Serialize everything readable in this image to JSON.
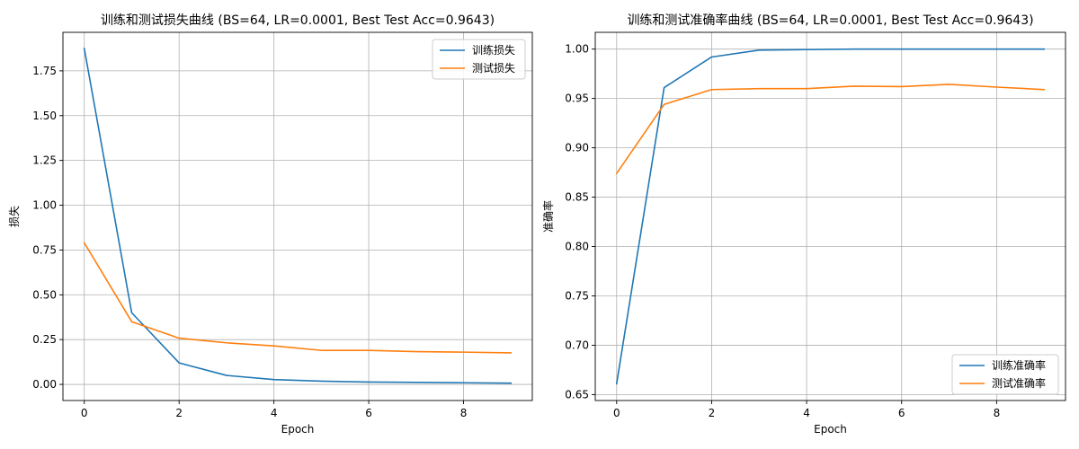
{
  "chart_data": [
    {
      "type": "line",
      "title": "训练和测试损失曲线 (BS=64, LR=0.0001, Best Test Acc=0.9643)",
      "xlabel": "Epoch",
      "ylabel": "损失",
      "xlim": [
        -0.45,
        9.45
      ],
      "ylim": [
        -0.09,
        1.965
      ],
      "xticks": [
        0,
        2,
        4,
        6,
        8
      ],
      "yticks": [
        0.0,
        0.25,
        0.5,
        0.75,
        1.0,
        1.25,
        1.5,
        1.75
      ],
      "ytick_decimals": 2,
      "grid": true,
      "legend_position": "upper right",
      "x": [
        0,
        1,
        2,
        3,
        4,
        5,
        6,
        7,
        8,
        9
      ],
      "series": [
        {
          "name": "训练损失",
          "color": "#1f77b4",
          "values": [
            1.875,
            0.4,
            0.12,
            0.05,
            0.027,
            0.018,
            0.013,
            0.011,
            0.009,
            0.007
          ]
        },
        {
          "name": "测试损失",
          "color": "#ff7f0e",
          "values": [
            0.79,
            0.35,
            0.258,
            0.232,
            0.215,
            0.19,
            0.19,
            0.183,
            0.18,
            0.176
          ]
        }
      ]
    },
    {
      "type": "line",
      "title": "训练和测试准确率曲线 (BS=64, LR=0.0001, Best Test Acc=0.9643)",
      "xlabel": "Epoch",
      "ylabel": "准确率",
      "xlim": [
        -0.45,
        9.45
      ],
      "ylim": [
        0.644,
        1.017
      ],
      "xticks": [
        0,
        2,
        4,
        6,
        8
      ],
      "yticks": [
        0.65,
        0.7,
        0.75,
        0.8,
        0.85,
        0.9,
        0.95,
        1.0
      ],
      "ytick_decimals": 2,
      "grid": true,
      "legend_position": "lower right",
      "x": [
        0,
        1,
        2,
        3,
        4,
        5,
        6,
        7,
        8,
        9
      ],
      "series": [
        {
          "name": "训练准确率",
          "color": "#1f77b4",
          "values": [
            0.661,
            0.961,
            0.992,
            0.999,
            0.9995,
            1.0,
            1.0,
            1.0,
            1.0,
            1.0
          ]
        },
        {
          "name": "测试准确率",
          "color": "#ff7f0e",
          "values": [
            0.874,
            0.944,
            0.959,
            0.96,
            0.96,
            0.9625,
            0.962,
            0.9643,
            0.9615,
            0.959
          ]
        }
      ]
    }
  ]
}
